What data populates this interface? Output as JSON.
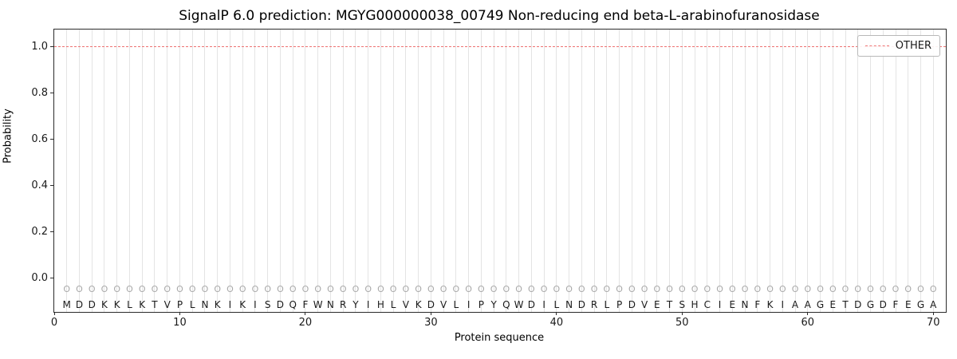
{
  "chart_data": {
    "type": "line",
    "title": "SignalP 6.0 prediction: MGYG000000038_00749 Non-reducing end beta-L-arabinofuranosidase",
    "xlabel": "Protein sequence",
    "ylabel": "Probability",
    "xlim": [
      0,
      71
    ],
    "ylim": [
      -0.145,
      1.075
    ],
    "xticks": [
      0,
      10,
      20,
      30,
      40,
      50,
      60,
      70
    ],
    "yticks": [
      "0.0",
      "0.2",
      "0.4",
      "0.6",
      "0.8",
      "1.0"
    ],
    "grid": "vertical gridline at each residue position",
    "legend_position": "upper right",
    "series": [
      {
        "name": "OTHER",
        "style": "dashed",
        "color": "#ee7272",
        "constant_value": 1.0,
        "x_range": [
          1,
          70
        ]
      }
    ],
    "residue_marker": "O",
    "marker_color": "#a9a9a9",
    "grid_color": "#e4e4e4",
    "sequence": [
      "M",
      "D",
      "D",
      "K",
      "K",
      "L",
      "K",
      "T",
      "V",
      "P",
      "L",
      "N",
      "K",
      "I",
      "K",
      "I",
      "S",
      "D",
      "Q",
      "F",
      "W",
      "N",
      "R",
      "Y",
      "I",
      "H",
      "L",
      "V",
      "K",
      "D",
      "V",
      "L",
      "I",
      "P",
      "Y",
      "Q",
      "W",
      "D",
      "I",
      "L",
      "N",
      "D",
      "R",
      "L",
      "P",
      "D",
      "V",
      "E",
      "T",
      "S",
      "H",
      "C",
      "I",
      "E",
      "N",
      "F",
      "K",
      "I",
      "A",
      "A",
      "G",
      "E",
      "T",
      "D",
      "G",
      "D",
      "F",
      "E",
      "G",
      "A"
    ]
  }
}
